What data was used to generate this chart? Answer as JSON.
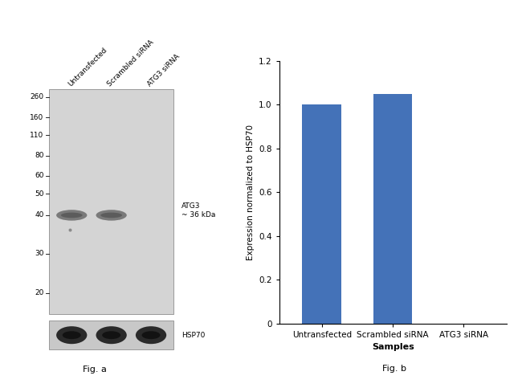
{
  "fig_a": {
    "title": "Fig. a",
    "gel_bg_color": "#d8d8d8",
    "gel_border_color": "#999999",
    "ladder_labels": [
      "260",
      "160",
      "110",
      "80",
      "60",
      "50",
      "40",
      "30",
      "20"
    ],
    "lad_fracs": [
      0.965,
      0.875,
      0.795,
      0.705,
      0.615,
      0.535,
      0.44,
      0.27,
      0.095
    ],
    "col_labels": [
      "Untransfected",
      "Scrambled siRNA",
      "ATG3 siRNA"
    ],
    "atg3_label": "ATG3\n~ 36 kDa",
    "hsp70_label": "HSP70",
    "atg3_band_present": [
      true,
      true,
      false
    ],
    "hsp70_band_present": [
      true,
      true,
      true
    ],
    "band_color_atg3": "#606060",
    "band_color_hsp70": "#181818",
    "upper_gel_color": "#d4d4d4",
    "lower_gel_color": "#c8c8c8"
  },
  "fig_b": {
    "title": "Fig. b",
    "categories": [
      "Untransfected",
      "Scrambled siRNA",
      "ATG3 siRNA"
    ],
    "values": [
      1.0,
      1.05,
      0.0
    ],
    "bar_color": "#4472b8",
    "ylabel": "Expression normalized to HSP70",
    "xlabel": "Samples",
    "ylim": [
      0,
      1.2
    ],
    "yticks": [
      0,
      0.2,
      0.4,
      0.6,
      0.8,
      1.0,
      1.2
    ]
  }
}
